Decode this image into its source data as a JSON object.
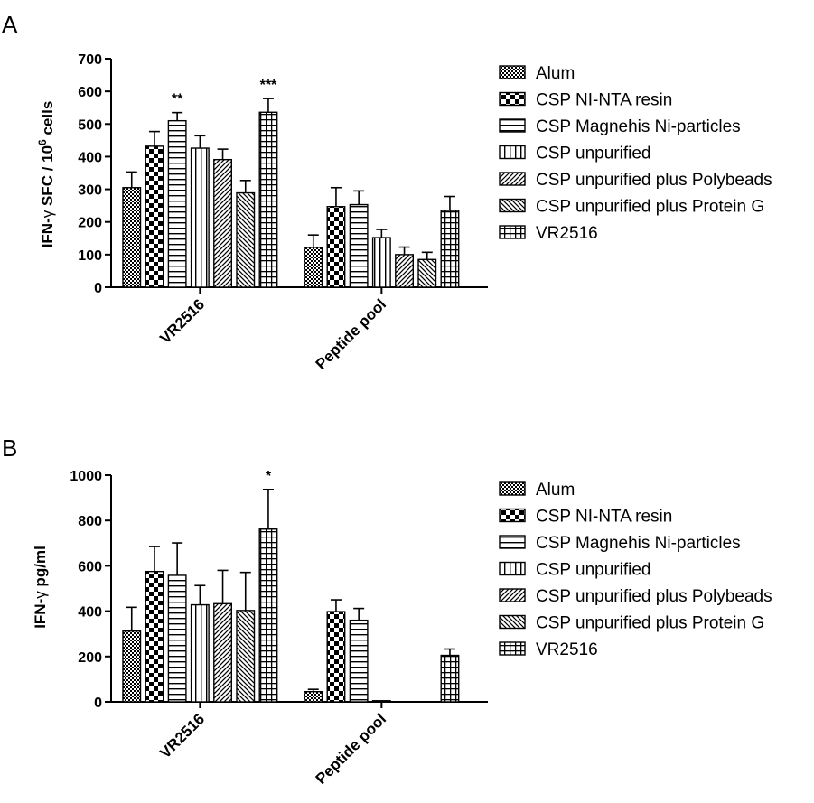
{
  "patterns": {
    "Alum": "fine-check",
    "CSP NI-NTA resin": "checkerboard",
    "CSP Magnehis Ni-particles": "horizontal-lines",
    "CSP unpurified": "vertical-lines",
    "CSP unpurified plus Polybeads": "diagonal-lines",
    "CSP unpurified plus Protein G": "back-diagonal-lines",
    "VR2516": "grid"
  },
  "chart_data": [
    {
      "panel": "A",
      "type": "bar",
      "ylabel_parts": [
        "IFN-",
        "γ",
        " SFC / 10",
        "6",
        " cells"
      ],
      "ylim": [
        0,
        700
      ],
      "yticks": [
        0,
        100,
        200,
        300,
        400,
        500,
        600,
        700
      ],
      "categories": [
        "VR2516",
        "Peptide pool"
      ],
      "series": [
        {
          "name": "Alum",
          "values": [
            305,
            122
          ],
          "errors": [
            48,
            38
          ]
        },
        {
          "name": "CSP NI-NTA resin",
          "values": [
            432,
            247
          ],
          "errors": [
            45,
            58
          ]
        },
        {
          "name": "CSP Magnehis Ni-particles",
          "values": [
            510,
            253
          ],
          "errors": [
            25,
            42
          ]
        },
        {
          "name": "CSP unpurified",
          "values": [
            426,
            152
          ],
          "errors": [
            38,
            25
          ]
        },
        {
          "name": "CSP unpurified plus Polybeads",
          "values": [
            391,
            100
          ],
          "errors": [
            32,
            23
          ]
        },
        {
          "name": "CSP unpurified plus Protein G",
          "values": [
            289,
            85
          ],
          "errors": [
            38,
            22
          ]
        },
        {
          "name": "VR2516",
          "values": [
            536,
            235
          ],
          "errors": [
            42,
            43
          ]
        }
      ],
      "annotations": [
        {
          "category": 0,
          "series": 2,
          "text": "**"
        },
        {
          "category": 0,
          "series": 6,
          "text": "***"
        }
      ],
      "legend": "right"
    },
    {
      "panel": "B",
      "type": "bar",
      "ylabel_parts": [
        "IFN-",
        "γ",
        " pg/ml"
      ],
      "ylim": [
        0,
        1000
      ],
      "yticks": [
        0,
        200,
        400,
        600,
        800,
        1000
      ],
      "categories": [
        "VR2516",
        "Peptide pool"
      ],
      "series": [
        {
          "name": "Alum",
          "values": [
            312,
            45
          ],
          "errors": [
            105,
            10
          ]
        },
        {
          "name": "CSP NI-NTA resin",
          "values": [
            575,
            398
          ],
          "errors": [
            110,
            52
          ]
        },
        {
          "name": "CSP Magnehis Ni-particles",
          "values": [
            558,
            360
          ],
          "errors": [
            143,
            52
          ]
        },
        {
          "name": "CSP unpurified",
          "values": [
            428,
            5
          ],
          "errors": [
            85,
            0
          ]
        },
        {
          "name": "CSP unpurified plus Polybeads",
          "values": [
            433,
            0
          ],
          "errors": [
            147,
            0
          ]
        },
        {
          "name": "CSP unpurified plus Protein G",
          "values": [
            403,
            0
          ],
          "errors": [
            168,
            0
          ]
        },
        {
          "name": "VR2516",
          "values": [
            762,
            205
          ],
          "errors": [
            175,
            28
          ]
        }
      ],
      "annotations": [
        {
          "category": 0,
          "series": 6,
          "text": "*"
        }
      ],
      "legend": "right"
    }
  ]
}
